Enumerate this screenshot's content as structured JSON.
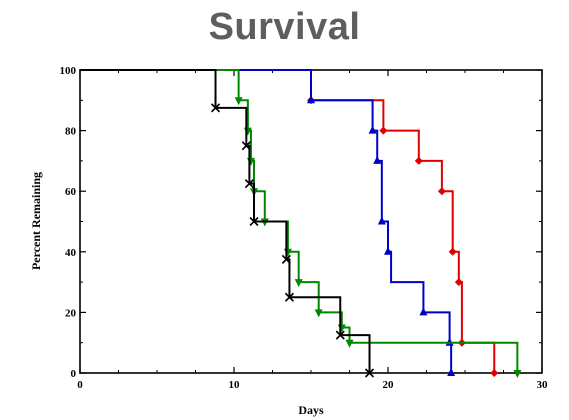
{
  "chart_data": {
    "type": "line",
    "subtype": "kaplan-meier step",
    "title": "Survival",
    "xlabel": "Days",
    "ylabel": "Percent Remaining",
    "xlim": [
      0,
      30
    ],
    "ylim": [
      0,
      100
    ],
    "x_ticks": [
      0,
      10,
      20,
      30
    ],
    "y_ticks": [
      0,
      20,
      40,
      60,
      80,
      100
    ],
    "grid": false,
    "legend": "none",
    "series": [
      {
        "color": "#e00000",
        "marker": "diamond",
        "steps": [
          [
            0,
            100
          ],
          [
            15,
            90
          ],
          [
            19.7,
            80
          ],
          [
            22,
            70
          ],
          [
            23.5,
            60
          ],
          [
            24.2,
            40
          ],
          [
            24.6,
            30
          ],
          [
            24.8,
            10
          ],
          [
            26.9,
            0
          ]
        ],
        "markers": [
          [
            15,
            90
          ],
          [
            19.7,
            80
          ],
          [
            22,
            70
          ],
          [
            23.5,
            60
          ],
          [
            24.2,
            40
          ],
          [
            24.6,
            30
          ],
          [
            24.8,
            10
          ],
          [
            26.9,
            0
          ]
        ]
      },
      {
        "color": "#0000c8",
        "marker": "triangle-up",
        "steps": [
          [
            0,
            100
          ],
          [
            15,
            90
          ],
          [
            19,
            80
          ],
          [
            19.3,
            70
          ],
          [
            19.6,
            50
          ],
          [
            20,
            40
          ],
          [
            20.2,
            30
          ],
          [
            22.3,
            20
          ],
          [
            24,
            10
          ],
          [
            24.1,
            0
          ]
        ],
        "markers": [
          [
            15,
            90
          ],
          [
            19,
            80
          ],
          [
            19.3,
            70
          ],
          [
            19.6,
            50
          ],
          [
            20,
            40
          ],
          [
            22.3,
            20
          ],
          [
            24,
            10
          ],
          [
            24.1,
            0
          ]
        ]
      },
      {
        "color": "#008800",
        "marker": "triangle-down",
        "steps": [
          [
            0,
            100
          ],
          [
            10.3,
            90
          ],
          [
            10.9,
            80
          ],
          [
            11.1,
            70
          ],
          [
            11.3,
            60
          ],
          [
            12,
            50
          ],
          [
            13.5,
            40
          ],
          [
            14.2,
            30
          ],
          [
            15.5,
            20
          ],
          [
            17,
            15
          ],
          [
            17.5,
            10
          ],
          [
            28.4,
            0
          ]
        ],
        "markers": [
          [
            10.3,
            90
          ],
          [
            10.9,
            80
          ],
          [
            11.1,
            70
          ],
          [
            11.3,
            60
          ],
          [
            12,
            50
          ],
          [
            13.5,
            40
          ],
          [
            14.2,
            30
          ],
          [
            15.5,
            20
          ],
          [
            17,
            15
          ],
          [
            17.5,
            10
          ],
          [
            28.4,
            0
          ]
        ]
      },
      {
        "color": "#000000",
        "marker": "x",
        "steps": [
          [
            0,
            100
          ],
          [
            8.8,
            87.5
          ],
          [
            10.8,
            75
          ],
          [
            11,
            62.5
          ],
          [
            11.3,
            50
          ],
          [
            13.4,
            37.5
          ],
          [
            13.6,
            25
          ],
          [
            16.9,
            12.5
          ],
          [
            18.8,
            0
          ]
        ],
        "markers": [
          [
            8.8,
            87.5
          ],
          [
            10.8,
            75
          ],
          [
            11,
            62.5
          ],
          [
            11.3,
            50
          ],
          [
            13.4,
            37.5
          ],
          [
            13.6,
            25
          ],
          [
            16.9,
            12.5
          ],
          [
            18.8,
            0
          ]
        ]
      }
    ]
  }
}
